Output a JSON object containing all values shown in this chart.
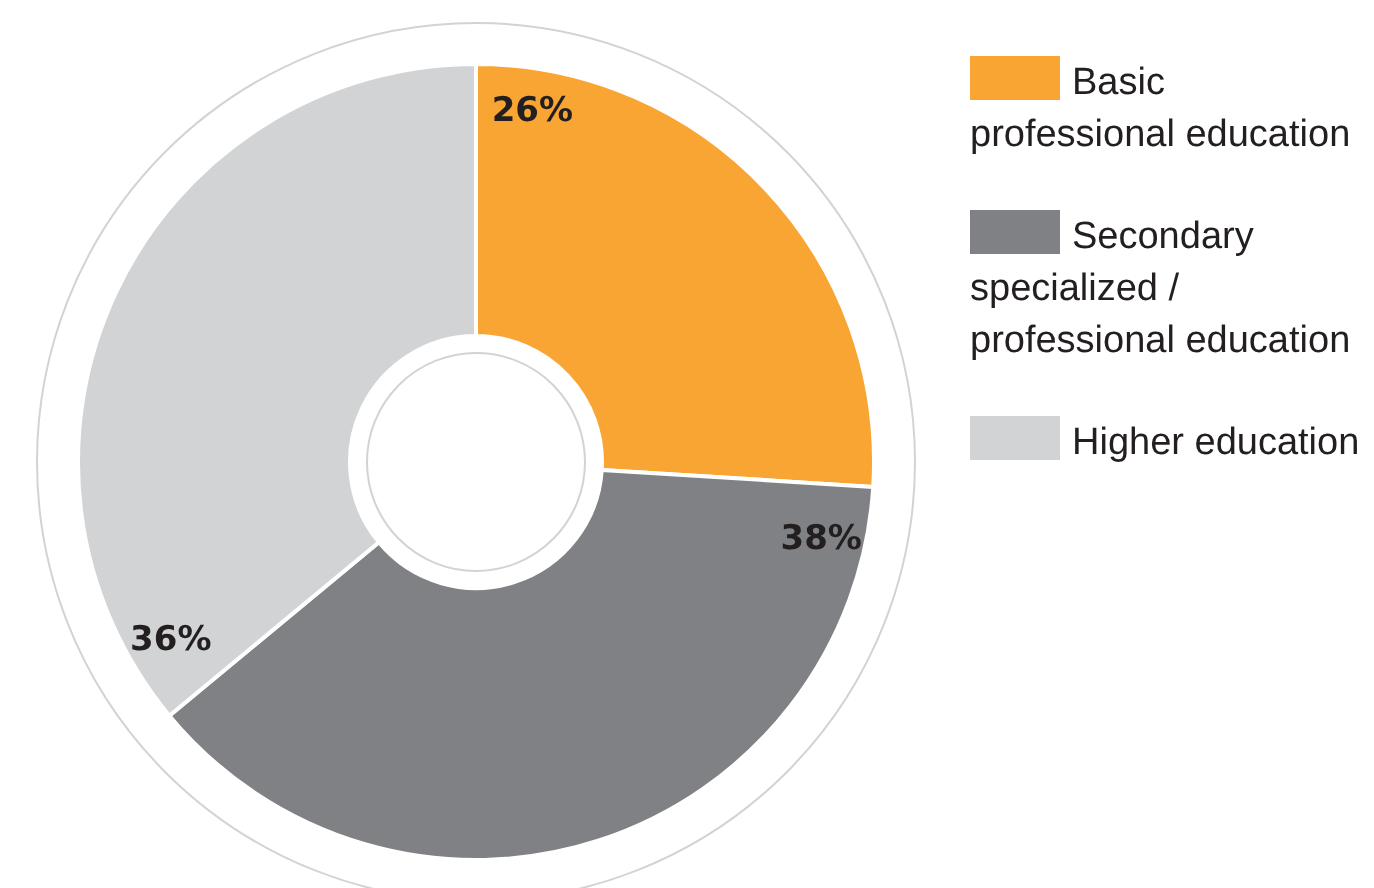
{
  "chart_data": {
    "type": "donut",
    "categories": [
      "Basic professional education",
      "Secondary specialized / professional education",
      "Higher education"
    ],
    "values": [
      26,
      38,
      36
    ],
    "colors": [
      "#f9a533",
      "#808184",
      "#d1d3d4"
    ],
    "value_labels": [
      "26%",
      "38%",
      "36%"
    ],
    "legend": "right"
  }
}
